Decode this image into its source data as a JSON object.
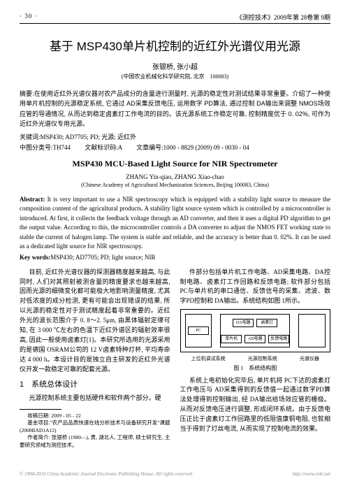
{
  "header": {
    "page_num": "· 30 ·",
    "journal": "《测控技术》2009年第 28卷第 9期"
  },
  "title_cn": "基于 MSP430单片机控制的近红外光谱仪用光源",
  "authors_cn": "张银桥, 张小超",
  "affil_cn": "(中国农业机械化科学研究院, 北京　100083)",
  "abstract_cn_label": "摘要:",
  "abstract_cn": "在使用近红外光谱仪器对农产品成分的含量进行测量时, 光源的稳定性对测试结果非常重要。介绍了一种使用单片机控制的光源稳定系统, 它通过 AD采集反馈电压, 运用数字 PD算法, 通过控制 DA输出来调整 NMOS场效应管的导通情况, 从而达到稳定卤素灯工作电流的目的。该光源系统工作稳定可靠, 控制精度优于 0. 02%, 可作为近红外光谱仪专用光源。",
  "kw_cn_label": "关键词:",
  "kw_cn": "MSP430; AD7705; PD; 光源; 近红外",
  "class_label": "中图分类号:",
  "class_val": "TH744",
  "doc_label": "文献标识码:",
  "doc_val": "A",
  "art_label": "文章编号:",
  "art_val": "1000 - 8829 (2009) 09 - 0030 - 04",
  "title_en": "MSP430 MCU-Based Light Source for NIR Spectrometer",
  "authors_en": "ZHANG Yin-qiao, ZHANG Xiao-chao",
  "affil_en": "(Chinese Academy of Agricultural Mechanization Sciences, Beijing 100083, China)",
  "abstract_en_label": "Abstract:",
  "abstract_en": "It is very important to use a NIR spectroscopy which is equipped with a stability light source to measure the composition content of the agricultural products. A stability light source system which is controlled by a microcontroller is introduced. At first, it collects the feedback voltage through an AD converter, and then it uses a digital PD algorithm to get the output value. According to this, the microcontroller controls a DA converter to adjust the NMOS FET working state to stable the current of halogen lamp. The system is stable and reliable, and the accuracy is better than 0. 02%. It can be used as a dedicated light source for NIR spectroscopy.",
  "kw_en_label": "Key words:",
  "kw_en": "MSP430; AD7705; PD; light source; NIR",
  "body": {
    "p1": "目前, 近红外光谱仪器的探测器精度越来越高, 与此同时, 人们对其照射被测含量的精度要求也越来越高, 因而光源的细微变化都可能极大地影响测量精度, 尤其对低浓度的成分检测, 更有可能会出现错误的结果, 所以光源的稳定性对于测试精度起着非常重要的。近红外光的波长范围介于 0. 8～2. 5μm, 由黑体辐射定律可知, 在 3 000 ℃左右的色温下近红外谱区的辐射效率很高, 因此一般使用卤素灯[1]。本研究所选用的光源采用的是德国 OSRAM公司的 12 V卤素特种灯杯, 平均寿命达 4 000 h。本设计目的是独立自主研发的近红外光谱仪开发一款稳定可靠的配套光源。",
    "s1": "1　系统总体设计",
    "p2": "光源控制系统主要包括硬件和软件两个部分。硬",
    "p3": "件部分包括单片机工作电路、AD采集电路、DA控制电路、卤素灯工作回路和反馈电路; 软件部分包括 PC与单片机的串口通信、反馈信号的采集、滤波、数字PD控制和 DA输出。系统结构如图 1所示。",
    "fig_labels": {
      "a": "上位机调试系统",
      "b": "光源控制系统",
      "c": "光谱仪器"
    },
    "fig_boxes": {
      "pc": "PC",
      "da": "DA电路",
      "lamp": "卤素灯",
      "mcu": "单片机",
      "ad": "AD电路",
      "fb": "反馈电路"
    },
    "fig_caption": "图 1　系统结构图",
    "p4": "系统上电初始化完毕后, 单片机将 PC下达的卤素灯工作电压与 AD采集得到的反馈值一起通过数字PD算法处理得到控制输出, 经 DA输出给场效应管的栅极。从而对反馈电压进行调整, 形成闭环系统。由于反馈电压正比于卤素灯工作回路里的低阻值康铜电阻, 也就相当于得到了灯丝电流, 从而实现了控制电流的效果。"
  },
  "footnotes": {
    "f1": "收稿日期: 2009 - 05 - 22",
    "f2": "基金项目:\"农产品品质快速在线分析技术与设备研究开发\"课题 (2008BAD1A12)",
    "f3": "作者简介: 张银桥 (1980—), 男, 湖北人, 工程师, 硕士研究生, 主要研究领域为测控技术。"
  },
  "footer": {
    "left": "© 1994-2010 China Academic Journal Electronic Publishing House. All rights reserved.",
    "right": "http://www.cnki.net"
  }
}
